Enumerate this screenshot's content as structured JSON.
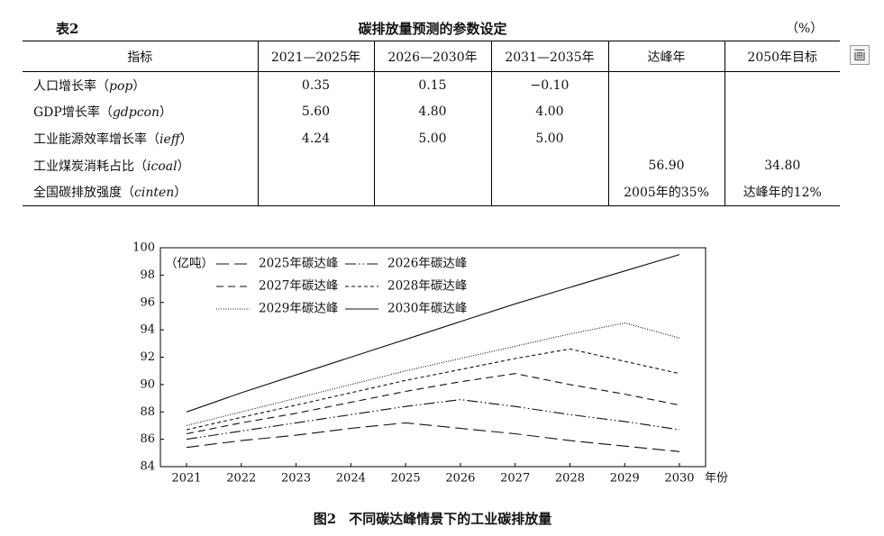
{
  "table": {
    "label": "表2",
    "title": "碳排放量预测的参数设定",
    "unit": "（%）",
    "headers": [
      "指标",
      "2021—2025年",
      "2026—2030年",
      "2031—2035年",
      "达峰年",
      "2050年目标"
    ],
    "rows": [
      {
        "indicator": {
          "name": "人口增长率（",
          "var": "pop",
          "close": "）"
        },
        "cells": [
          "0.35",
          "0.15",
          "−0.10",
          "",
          ""
        ]
      },
      {
        "indicator": {
          "name": "GDP增长率（",
          "var": "gdpcon",
          "close": "）"
        },
        "cells": [
          "5.60",
          "4.80",
          "4.00",
          "",
          ""
        ]
      },
      {
        "indicator": {
          "name": "工业能源效率增长率（",
          "var": "ieff",
          "close": "）"
        },
        "cells": [
          "4.24",
          "5.00",
          "5.00",
          "",
          ""
        ]
      },
      {
        "indicator": {
          "name": "工业煤炭消耗占比（",
          "var": "icoal",
          "close": "）"
        },
        "cells": [
          "",
          "",
          "",
          "56.90",
          "34.80"
        ]
      },
      {
        "indicator": {
          "name": "全国碳排放强度（",
          "var": "cinten",
          "close": "）"
        },
        "cells": [
          "",
          "",
          "",
          "2005年的35%",
          "达峰年的12%"
        ]
      }
    ]
  },
  "toolbar": {
    "table_view_icon": "table-view-icon"
  },
  "figure": {
    "label": "图2",
    "caption": "不同碳达峰情景下的工业碳排放量"
  },
  "chart_data": {
    "type": "line",
    "x": [
      2021,
      2022,
      2023,
      2024,
      2025,
      2026,
      2027,
      2028,
      2029,
      2030
    ],
    "xlabel": "年份",
    "ylabel": "（亿吨）",
    "ylim": [
      84,
      100
    ],
    "yticks": [
      84,
      86,
      88,
      90,
      92,
      94,
      96,
      98,
      100
    ],
    "grid": false,
    "legend": "top-left",
    "line_color": "#111111",
    "series": [
      {
        "name": "2025年碳达峰",
        "line_style": "long-dash",
        "values": [
          85.4,
          85.9,
          86.3,
          86.8,
          87.2,
          86.8,
          86.4,
          85.9,
          85.5,
          85.1
        ]
      },
      {
        "name": "2026年碳达峰",
        "line_style": "dash-dot-dot",
        "values": [
          86.0,
          86.6,
          87.2,
          87.8,
          88.4,
          88.9,
          88.4,
          87.8,
          87.3,
          86.7
        ]
      },
      {
        "name": "2027年碳达峰",
        "line_style": "medium-dash",
        "values": [
          86.4,
          87.2,
          87.9,
          88.7,
          89.5,
          90.2,
          90.8,
          90.0,
          89.3,
          88.5
        ]
      },
      {
        "name": "2028年碳达峰",
        "line_style": "short-dash",
        "values": [
          86.7,
          87.6,
          88.5,
          89.4,
          90.3,
          91.1,
          91.9,
          92.6,
          91.7,
          90.8
        ]
      },
      {
        "name": "2029年碳达峰",
        "line_style": "dotted",
        "values": [
          87.0,
          88.0,
          89.0,
          90.0,
          91.0,
          91.9,
          92.8,
          93.7,
          94.5,
          93.4
        ]
      },
      {
        "name": "2030年碳达峰",
        "line_style": "solid",
        "values": [
          88.0,
          89.4,
          90.7,
          92.0,
          93.3,
          94.6,
          95.9,
          97.1,
          98.3,
          99.5
        ]
      }
    ]
  }
}
